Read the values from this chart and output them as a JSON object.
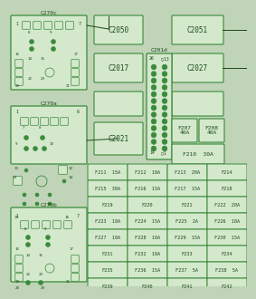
{
  "bg_color": "#d4e8cc",
  "border_color": "#3a8a3a",
  "text_color": "#1a4a1a",
  "fig_bg": "#c0d4b8",
  "fuse_rows": [
    [
      "F211  15A",
      "F212  10A",
      "F213  20A",
      "F214"
    ],
    [
      "F215  30A",
      "F216  15A",
      "F217  15A",
      "F218"
    ],
    [
      "F219",
      "F220",
      "F221",
      "F222  20A"
    ],
    [
      "F223  10A",
      "F224  15A",
      "F225  2A",
      "F226  10A"
    ],
    [
      "F227  10A",
      "F228  10A",
      "F229  15A",
      "F230  15A"
    ],
    [
      "F231",
      "F232  10A",
      "F233",
      "F234"
    ],
    [
      "F235",
      "F236  15A",
      "F237  5A",
      "F238  5A"
    ],
    [
      "F239",
      "F240",
      "F241",
      "F242"
    ]
  ]
}
